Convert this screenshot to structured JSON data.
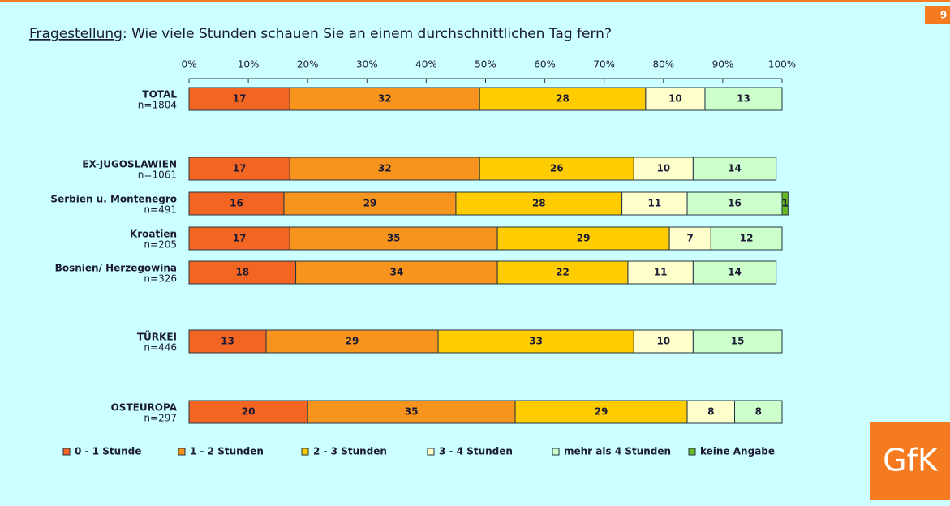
{
  "page_number": "9",
  "logo": "GfK",
  "chart_data": {
    "type": "bar",
    "orientation": "horizontal",
    "stacked": true,
    "title_label": "Fragestellung",
    "title": ": Wie viele Stunden schauen Sie an einem durchschnittlichen Tag fern?",
    "categories": [
      "TOTAL",
      "EX-JUGOSLAWIEN",
      "Serbien u. Montenegro",
      "Kroatien",
      "Bosnien/ Herzegowina",
      "TÜRKEI",
      "OSTEUROPA"
    ],
    "sample_sizes": [
      "n=1804",
      "n=1061",
      "n=491",
      "n=205",
      "n=326",
      "n=446",
      "n=297"
    ],
    "series": [
      {
        "name": "0 - 1 Stunde",
        "color": "#f26522",
        "values": [
          17,
          17,
          16,
          17,
          18,
          13,
          20
        ]
      },
      {
        "name": "1 - 2 Stunden",
        "color": "#f7941d",
        "values": [
          32,
          32,
          29,
          35,
          34,
          29,
          35
        ]
      },
      {
        "name": "2 - 3 Stunden",
        "color": "#ffcc00",
        "values": [
          28,
          26,
          28,
          29,
          22,
          33,
          29
        ]
      },
      {
        "name": "3 - 4 Stunden",
        "color": "#ffffcc",
        "values": [
          10,
          10,
          11,
          7,
          11,
          10,
          8
        ]
      },
      {
        "name": "mehr als 4 Stunden",
        "color": "#ccffcc",
        "values": [
          13,
          14,
          16,
          12,
          14,
          15,
          8
        ]
      },
      {
        "name": "keine Angabe",
        "color": "#66bb22",
        "values": [
          null,
          null,
          1,
          null,
          null,
          null,
          null
        ]
      }
    ],
    "xlim": [
      0,
      100
    ],
    "xticks": [
      {
        "value": 0,
        "label": "0%"
      },
      {
        "value": 10,
        "label": "10%"
      },
      {
        "value": 20,
        "label": "20%"
      },
      {
        "value": 30,
        "label": "30%"
      },
      {
        "value": 40,
        "label": "40%"
      },
      {
        "value": 50,
        "label": "50%"
      },
      {
        "value": 60,
        "label": "60%"
      },
      {
        "value": 70,
        "label": "70%"
      },
      {
        "value": 80,
        "label": "80%"
      },
      {
        "value": 90,
        "label": "90%"
      },
      {
        "value": 100,
        "label": "100%"
      }
    ],
    "legend": "bottom"
  }
}
